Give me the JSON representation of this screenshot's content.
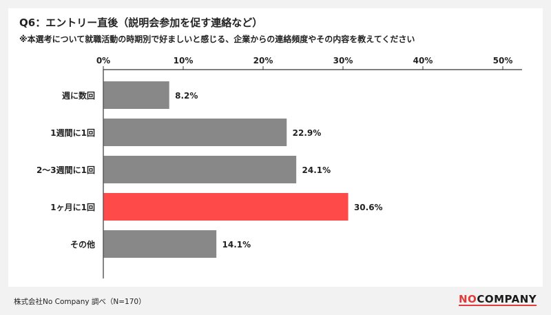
{
  "title": "Q6：エントリー直後（説明会参加を促す連絡など）",
  "subtitle": "※本選考について就職活動の時期別で好ましいと感じる、企業からの連絡頻度やその内容を教えてください",
  "footer": {
    "source": "株式会社No Company 調べ（N=170）",
    "logo_no": "NO",
    "logo_company": "COMPANY"
  },
  "chart_data": {
    "type": "bar",
    "orientation": "horizontal",
    "categories": [
      "週に数回",
      "1週間に1回",
      "2〜3週間に1回",
      "1ヶ月に1回",
      "その他"
    ],
    "values": [
      8.2,
      22.9,
      24.1,
      30.6,
      14.1
    ],
    "value_labels": [
      "8.2%",
      "22.9%",
      "24.1%",
      "30.6%",
      "14.1%"
    ],
    "xlim": [
      0,
      50
    ],
    "xticks": [
      0,
      10,
      20,
      30,
      40,
      50
    ],
    "xtick_labels": [
      "0%",
      "10%",
      "20%",
      "30%",
      "40%",
      "50%"
    ],
    "xaxis_position": "top",
    "grid": false,
    "colors": {
      "default": "#888888",
      "highlight": "#ff4a4a",
      "highlight_index": 3
    }
  }
}
